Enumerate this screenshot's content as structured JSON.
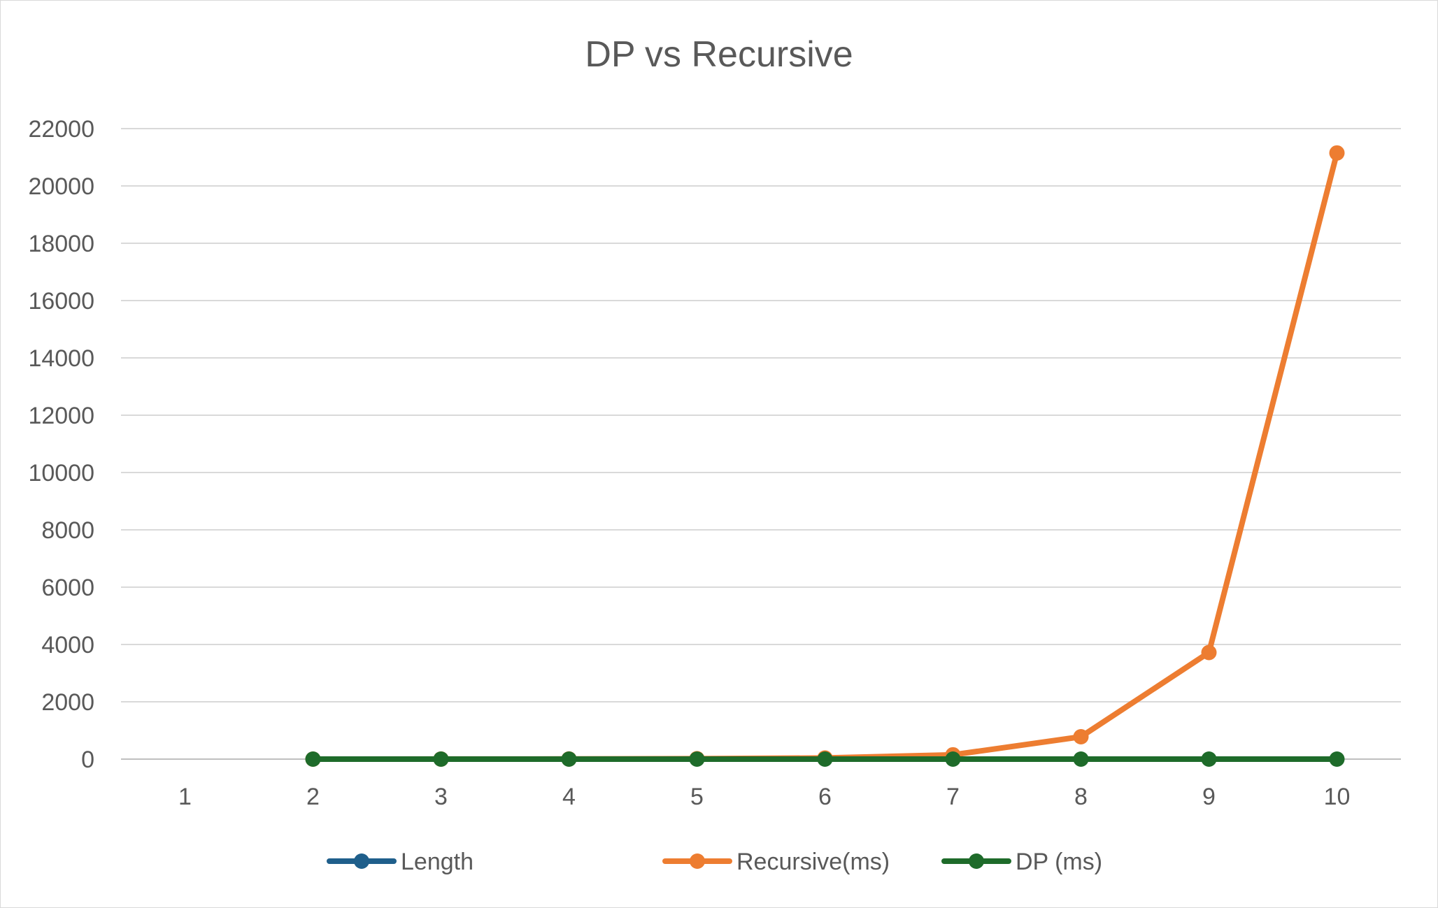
{
  "chart_data": {
    "type": "line",
    "title": "DP vs Recursive",
    "categories": [
      "1",
      "2",
      "3",
      "4",
      "5",
      "6",
      "7",
      "8",
      "9",
      "10"
    ],
    "ylim": [
      0,
      22000
    ],
    "yticks": [
      0,
      2000,
      4000,
      6000,
      8000,
      10000,
      12000,
      14000,
      16000,
      18000,
      20000,
      22000
    ],
    "grid": true,
    "legend_position": "bottom",
    "series": [
      {
        "name": "Length",
        "color": "#1f5f8b",
        "values": [
          null,
          null,
          null,
          null,
          null,
          null,
          null,
          null,
          null,
          null
        ]
      },
      {
        "name": "Recursive(ms)",
        "color": "#ed7d31",
        "values": [
          null,
          0,
          2,
          5,
          15,
          40,
          150,
          780,
          3720,
          21150
        ]
      },
      {
        "name": "DP (ms)",
        "color": "#1e6b2a",
        "values": [
          null,
          0,
          0,
          0,
          0,
          0,
          0,
          0,
          0,
          0
        ]
      }
    ]
  }
}
